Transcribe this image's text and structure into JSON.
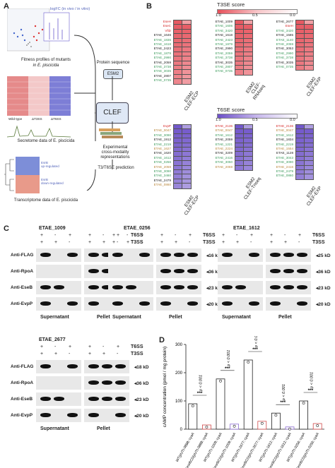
{
  "panels": {
    "a": "A",
    "b": "B",
    "c": "C",
    "d": "D"
  },
  "panel_a": {
    "volcano_x_label": "logFC (in vivo / in vitro)",
    "volcano_caption_1": "Fitness profiles of mutants",
    "volcano_caption_2": "in E. piscicida",
    "protein_sequence": "Protein sequence",
    "esm2": "ESM2",
    "clef": "CLEF",
    "wildtype": "Wild-type",
    "t3ss": "ΔT3SS",
    "t6ss": "ΔT6SS",
    "secretome_caption": "Secretome data of E. piscicida",
    "exp_reps_1": "Experimental",
    "exp_reps_2": "cross-modality",
    "exp_reps_3": "representations",
    "prediction": "T3/T6SE prediction",
    "esrb_up_1": "EsrB",
    "esrb_up_2": "up-regulated",
    "esrb_down_1": "EsrB",
    "esrb_down_2": "down-regulated",
    "transcriptome_caption": "Transcriptome data of E. piscicida"
  },
  "panel_b": {
    "t3_title": "T3SE score",
    "t6_title": "T6SE score",
    "scale_ticks": [
      "1.0",
      "0.5",
      "0.0"
    ],
    "t3_groups": [
      {
        "col1": "CLEF-ECP",
        "col2": "ESM2",
        "genes": [
          "EseH",
          "EseC",
          "VfiD",
          "ETAE_1646",
          "ETAE_1836",
          "ETAE_1618",
          "ETAE_2423",
          "ETAE_1879",
          "ETAE_2990",
          "ETAE_2059",
          "ETAE_3738",
          "ETAE_3035",
          "ETAE_2807",
          "ETAE_0735"
        ]
      },
      {
        "col1": "CLEF-RNAseq",
        "col2": "ESM2",
        "genes": [
          "ETAE_1009",
          "ETAE_1606",
          "ETAE_3420",
          "ETAE_1618",
          "ETAE_2423",
          "ETAE_1879",
          "ETAE_2990",
          "ETAE_2059",
          "ETAE_3738",
          "ETAE_3035",
          "ETAE_2807",
          "ETAE_0735"
        ]
      },
      {
        "col1": "CLEF-EXP",
        "col2": "ESM2",
        "genes": [
          "ETAE_2677",
          "EseH",
          "ETAE_3420",
          "ETAE_1585",
          "ETAE_1140",
          "ETAE_2059",
          "ETAE_3053",
          "ETAE_2990",
          "ETAE_3738",
          "ETAE_3035",
          "ETAE_0735"
        ]
      }
    ],
    "t6_groups": [
      {
        "col1": "CLEF-ECP",
        "col2": "ESM2",
        "genes": [
          "EvpP",
          "ETAE_0047",
          "ETAE_3090",
          "ETAE_1912",
          "ETAE_2219",
          "ETAE_1627",
          "ETAE_1620",
          "ETAE_1612",
          "ETAE_0256",
          "ETAE_2059",
          "ETAE_3090",
          "ETAE_3460",
          "ETAE_2479",
          "ETAE_0860"
        ]
      },
      {
        "col1": "CLEF-Tnseq",
        "col2": "ESM2",
        "genes": [
          "ETAE_2136",
          "ETAE_0047",
          "ETAE_1612",
          "ETAE_2059",
          "ETAE_1221",
          "ETAE_2224",
          "ETAE_3209",
          "ETAE_2416",
          "ETAE_3050",
          "ETAE_2059"
        ]
      },
      {
        "col1": "CLEF-EXP",
        "col2": "ESM2",
        "genes": [
          "ETAE_2136",
          "ETAE_0047",
          "ETAE_1612",
          "ETAE_1834",
          "ETAE_2219",
          "ETAE_1554",
          "ETAE_1128",
          "ETAE_3043",
          "ETAE_3090",
          "ETAE_2416",
          "ETAE_2479",
          "ETAE_0860"
        ]
      }
    ]
  },
  "panel_c": {
    "t6ss": "T6SS",
    "t3ss": "T3SS",
    "t6_signs": [
      "+",
      "-",
      "+",
      "+",
      "-",
      "+"
    ],
    "t3_signs": [
      "+",
      "+",
      "-",
      "+",
      "+",
      "-"
    ],
    "rows": [
      "Anti-FLAG",
      "Anti-RpoA",
      "Anti-EseB",
      "Anti-EvpP"
    ],
    "kd": [
      "16 kD",
      "36 kD",
      "23 kD",
      "20 kD"
    ],
    "kd_g3": [
      "25 kD",
      "36 kD",
      "23 kD",
      "20 kD"
    ],
    "kd_g4": [
      "18 kD",
      "36 kD",
      "23 kD",
      "20 kD"
    ],
    "supernatant": "Supernatant",
    "pellet": "Pellet",
    "g1": "ETAE_1009",
    "g2": "ETAE_0256",
    "g3": "ETAE_1612",
    "g4": "ETAE_2677",
    "g3_t6": "T6SS",
    "g3_t3": "T3SS"
  },
  "chart_data": {
    "type": "bar",
    "ylabel": "cAMP concentration (pmol / mg protein)",
    "ylim": [
      0,
      300
    ],
    "yticks": [
      "0",
      "100",
      "200",
      "300"
    ],
    "categories": [
      "WT(pUTt-0888::cyaA",
      "ΔesrBCD(pUTt-0888::cyaA",
      "WT(pUTt-1009::cyaA",
      "ΔesrBCD(pUTt-1009::cyaA",
      "WT(pUTt-2677::cyaA",
      "ΔesrBCD(pUTt-2677::cyaA",
      "WT(pUTt-1612::cyaA",
      "ΔesrBCD(pUTt-1612::cyaA",
      "WT(pUTt-0256::cyaA",
      "ΔesrBCD(pUTt-0256::cyaA"
    ],
    "values": [
      90,
      15,
      178,
      18,
      245,
      28,
      57,
      8,
      100,
      20
    ],
    "pvalue": "p < 0.001",
    "sig": "***"
  }
}
